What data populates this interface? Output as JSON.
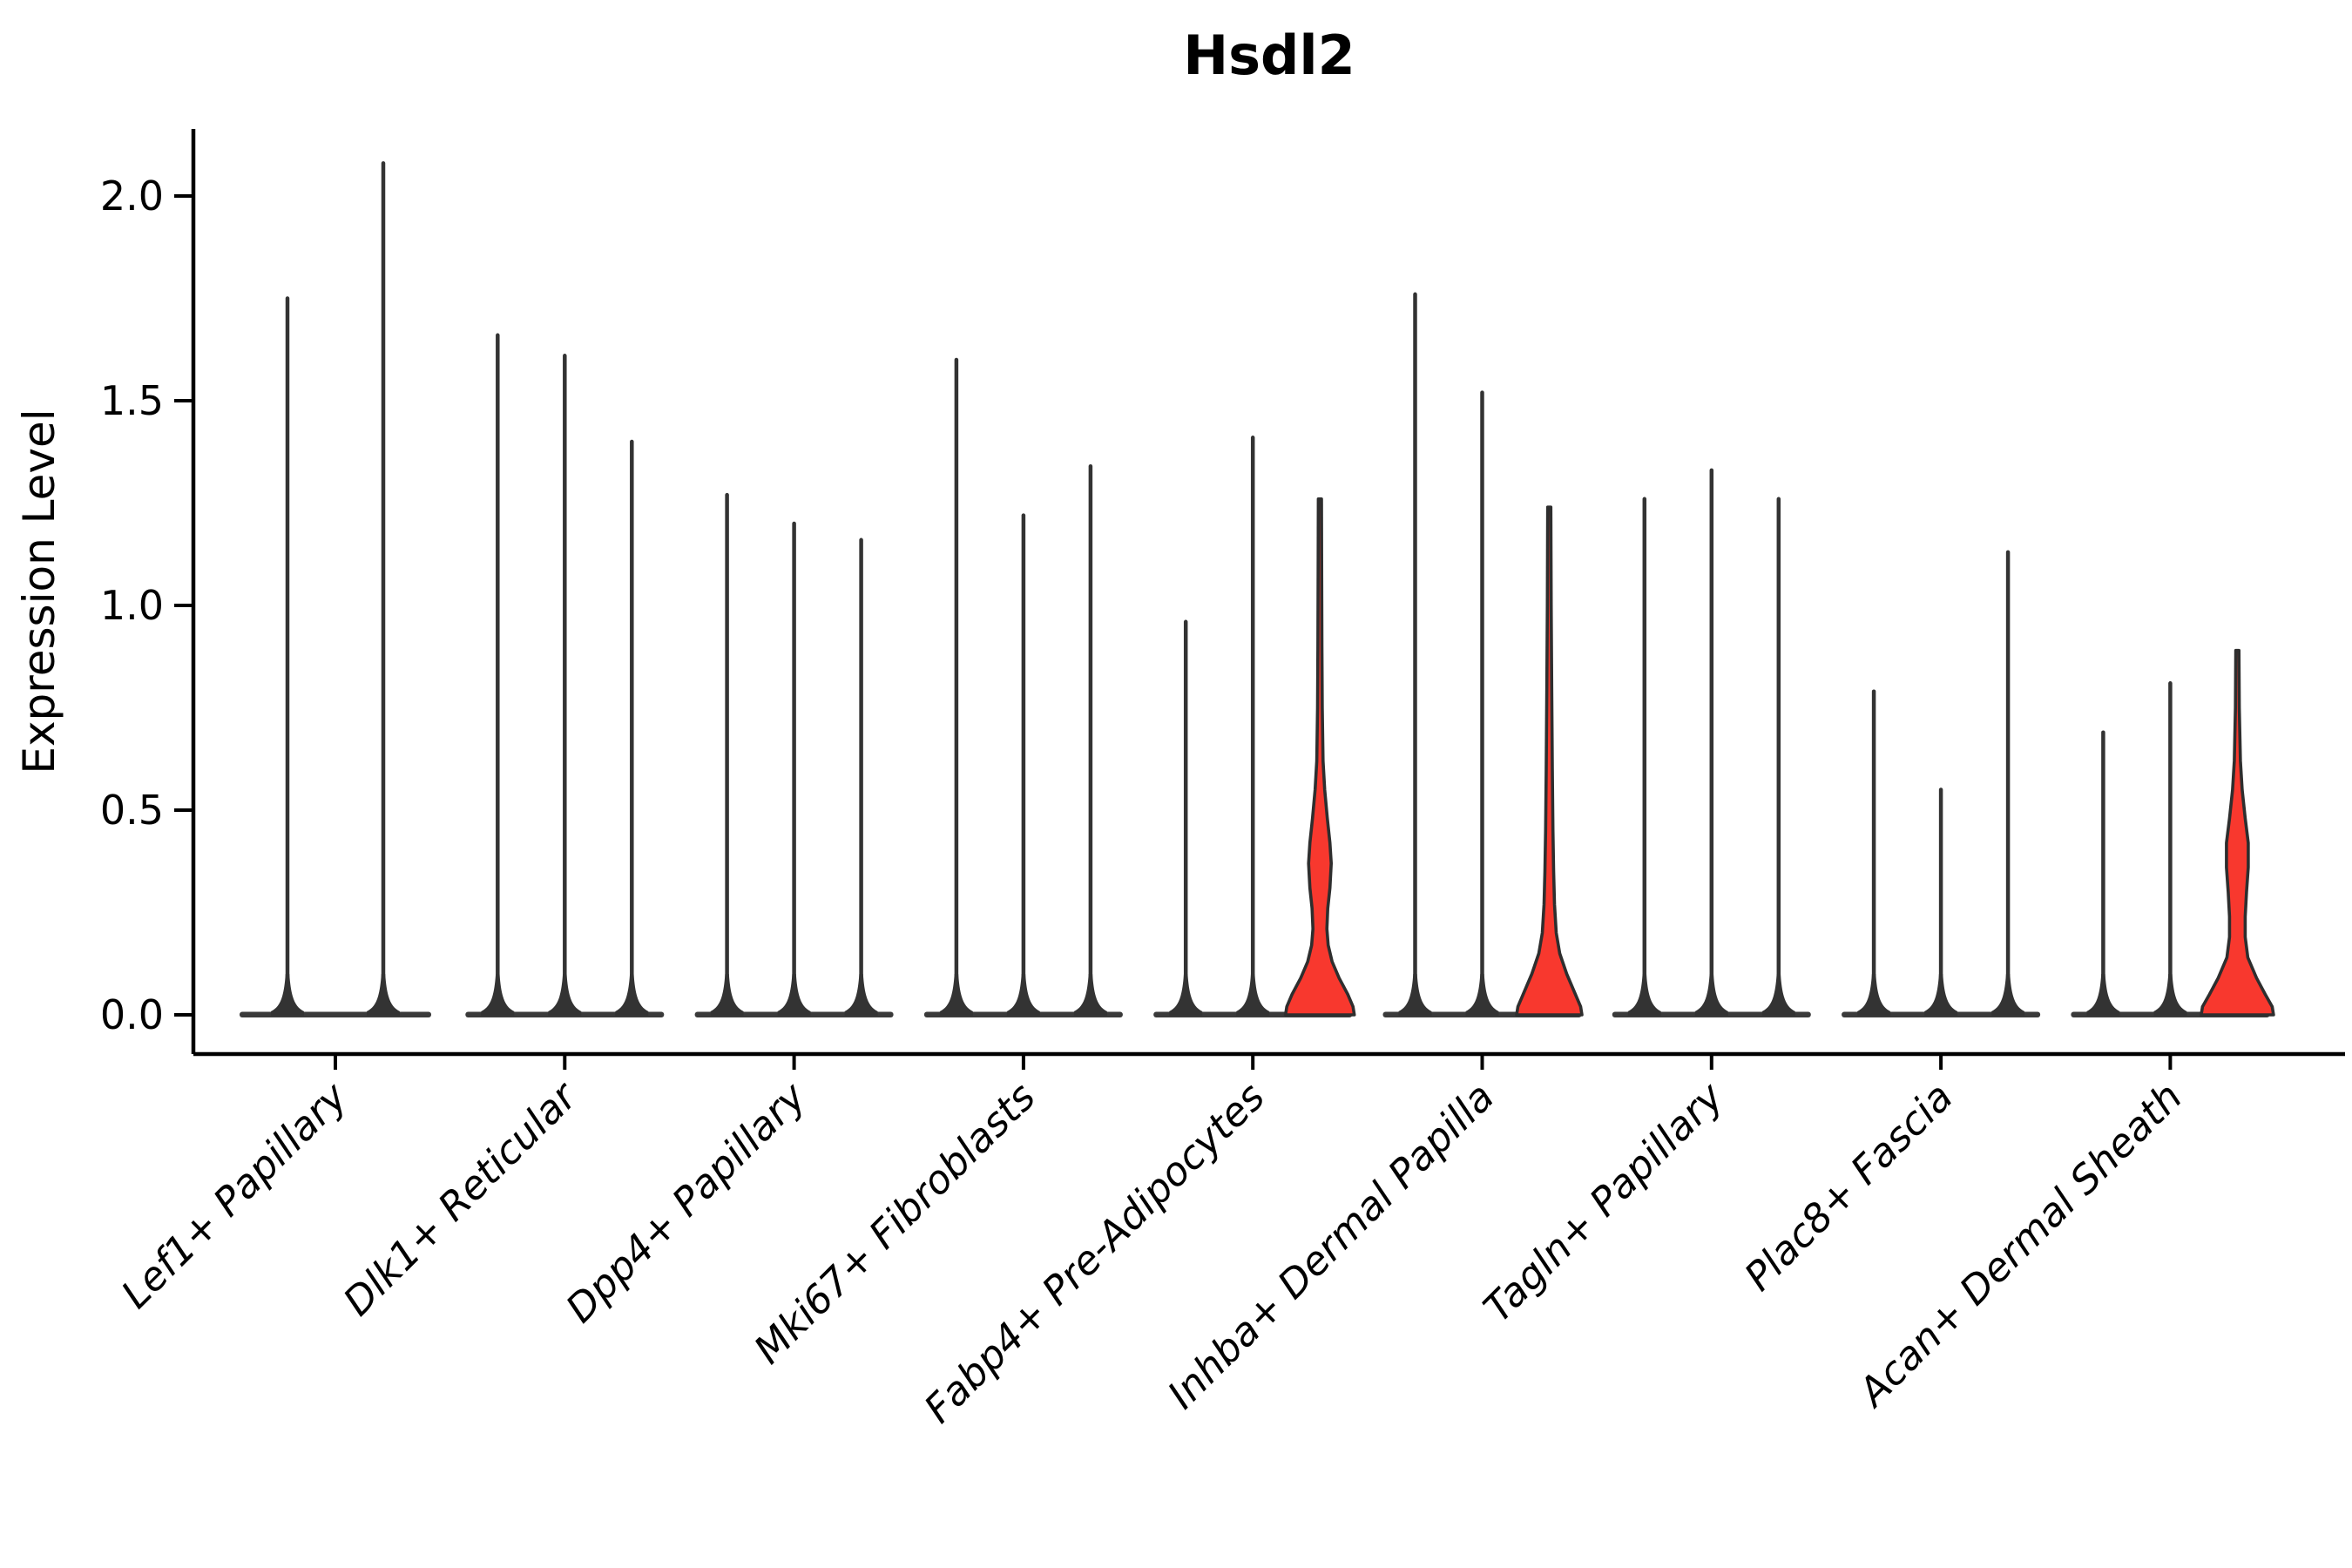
{
  "title": "Hsdl2",
  "chart_data": {
    "type": "violin",
    "title": "Hsdl2",
    "ylabel": "Expression Level",
    "xlabel": "",
    "ylim": [
      -0.1,
      2.16
    ],
    "yticks": [
      0.0,
      0.5,
      1.0,
      1.5,
      2.0
    ],
    "grid": false,
    "legend": "none",
    "colors": {
      "filled_violin": "#f8382e",
      "violin_outline": "#2e2e2e",
      "spike": "#333333",
      "baseline": "#3a3a3a",
      "axis": "#000000"
    },
    "categories": [
      "Lef1+ Papillary",
      "Dlk1+ Reticular",
      "Dpp4+ Papillary",
      "Mki67+ Fibroblasts",
      "Fabp4+ Pre-Adipocytes",
      "Inhba+ Dermal Papilla",
      "Tagln+ Papillary",
      "Plac8+ Fascia",
      "Acan+ Dermal Sheath"
    ],
    "groups": [
      {
        "category": "Lef1+ Papillary",
        "violins": [
          {
            "max": 1.75,
            "filled": false
          },
          {
            "max": 2.08,
            "filled": false
          }
        ]
      },
      {
        "category": "Dlk1+ Reticular",
        "violins": [
          {
            "max": 1.66,
            "filled": false
          },
          {
            "max": 1.61,
            "filled": false
          },
          {
            "max": 1.4,
            "filled": false
          }
        ]
      },
      {
        "category": "Dpp4+ Papillary",
        "violins": [
          {
            "max": 1.27,
            "filled": false
          },
          {
            "max": 1.2,
            "filled": false
          },
          {
            "max": 1.16,
            "filled": false
          }
        ]
      },
      {
        "category": "Mki67+ Fibroblasts",
        "violins": [
          {
            "max": 1.6,
            "filled": false
          },
          {
            "max": 1.22,
            "filled": false
          },
          {
            "max": 1.34,
            "filled": false
          }
        ]
      },
      {
        "category": "Fabp4+ Pre-Adipocytes",
        "violins": [
          {
            "max": 0.96,
            "filled": false
          },
          {
            "max": 1.41,
            "filled": false
          },
          {
            "max": 1.26,
            "filled": true,
            "profile": [
              [
                1.26,
                1.8
              ],
              [
                1.1,
                2.0
              ],
              [
                0.9,
                2.3
              ],
              [
                0.75,
                2.7
              ],
              [
                0.62,
                3.6
              ],
              [
                0.55,
                5.5
              ],
              [
                0.48,
                8.5
              ],
              [
                0.42,
                11.5
              ],
              [
                0.37,
                13.0
              ],
              [
                0.31,
                11.5
              ],
              [
                0.26,
                9.0
              ],
              [
                0.21,
                8.0
              ],
              [
                0.17,
                9.5
              ],
              [
                0.13,
                14.0
              ],
              [
                0.09,
                22.0
              ],
              [
                0.05,
                32.0
              ],
              [
                0.02,
                38.0
              ],
              [
                0.0,
                39.5
              ]
            ]
          }
        ]
      },
      {
        "category": "Inhba+ Dermal Papilla",
        "violins": [
          {
            "max": 1.76,
            "filled": false
          },
          {
            "max": 1.52,
            "filled": false
          },
          {
            "max": 1.24,
            "filled": true,
            "profile": [
              [
                1.24,
                1.8
              ],
              [
                1.0,
                2.2
              ],
              [
                0.8,
                2.8
              ],
              [
                0.6,
                3.5
              ],
              [
                0.45,
                4.2
              ],
              [
                0.35,
                5.0
              ],
              [
                0.27,
                6.0
              ],
              [
                0.2,
                8.0
              ],
              [
                0.15,
                12.0
              ],
              [
                0.1,
                20.0
              ],
              [
                0.05,
                30.0
              ],
              [
                0.02,
                36.0
              ],
              [
                0.0,
                37.5
              ]
            ]
          }
        ]
      },
      {
        "category": "Tagln+ Papillary",
        "violins": [
          {
            "max": 1.26,
            "filled": false
          },
          {
            "max": 1.33,
            "filled": false
          },
          {
            "max": 1.26,
            "filled": false
          }
        ]
      },
      {
        "category": "Plac8+ Fascia",
        "violins": [
          {
            "max": 0.79,
            "filled": false
          },
          {
            "max": 0.55,
            "filled": false
          },
          {
            "max": 1.13,
            "filled": false
          }
        ]
      },
      {
        "category": "Acan+ Dermal Sheath",
        "violins": [
          {
            "max": 0.69,
            "filled": false
          },
          {
            "max": 0.81,
            "filled": false
          },
          {
            "max": 0.89,
            "filled": true,
            "profile": [
              [
                0.89,
                1.8
              ],
              [
                0.75,
                2.2
              ],
              [
                0.62,
                3.5
              ],
              [
                0.55,
                5.5
              ],
              [
                0.48,
                9.0
              ],
              [
                0.42,
                12.5
              ],
              [
                0.36,
                12.5
              ],
              [
                0.3,
                10.5
              ],
              [
                0.24,
                9.0
              ],
              [
                0.19,
                9.0
              ],
              [
                0.14,
                12.0
              ],
              [
                0.09,
                22.0
              ],
              [
                0.05,
                32.0
              ],
              [
                0.02,
                40.0
              ],
              [
                0.0,
                41.5
              ]
            ]
          }
        ]
      }
    ]
  }
}
